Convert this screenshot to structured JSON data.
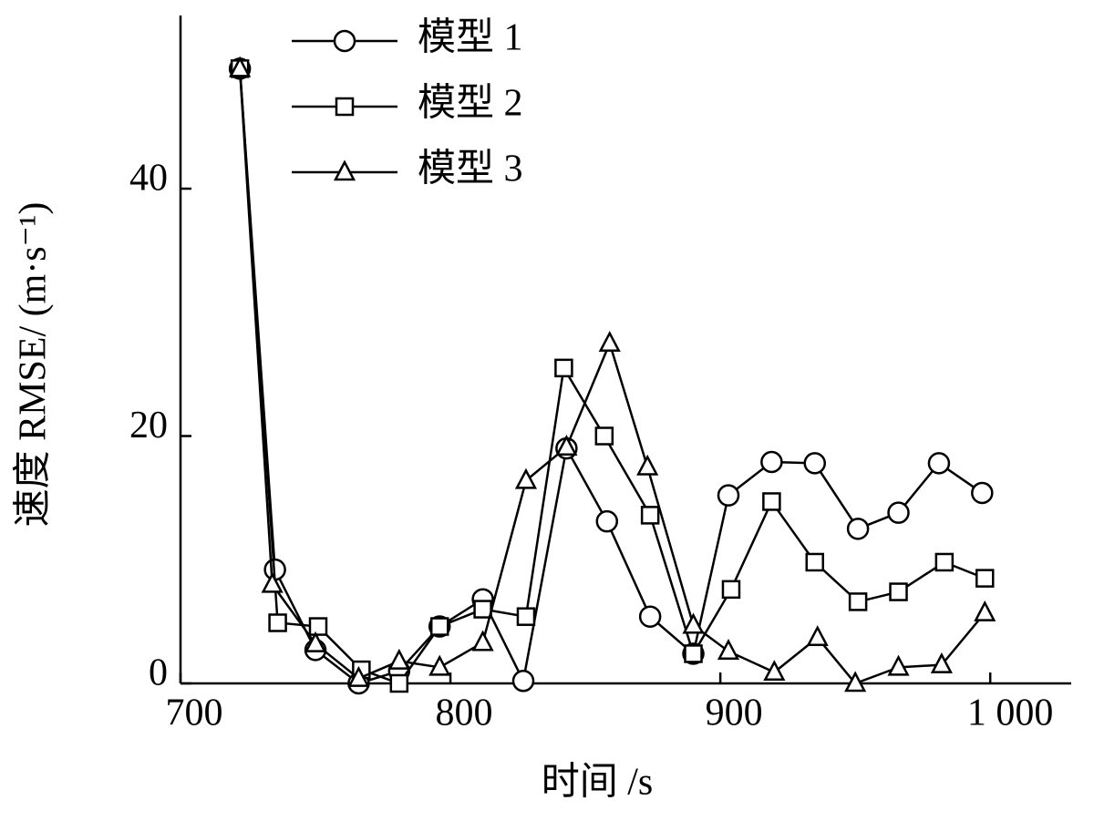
{
  "chart_data": {
    "type": "line",
    "xlabel": "时间 /s",
    "ylabel": "速度 RMSE/ (m·s⁻¹)",
    "xlim": [
      700,
      1030
    ],
    "ylim": [
      0,
      54
    ],
    "xticks": [
      700,
      800,
      900,
      {
        "value": 1000,
        "label": "1 000"
      }
    ],
    "yticks": [
      0,
      20,
      40
    ],
    "legend": "upper left",
    "series": [
      {
        "name": "模型 1",
        "color": "#000000",
        "marker": "circle",
        "x": [
          722,
          735,
          750,
          766,
          781,
          796,
          812,
          827,
          843,
          858,
          874,
          890,
          903,
          919,
          935,
          951,
          966,
          981,
          997
        ],
        "values": [
          49.7,
          9.2,
          2.7,
          0,
          1.0,
          4.6,
          6.8,
          0.2,
          19.0,
          13.1,
          5.4,
          2.4,
          15.2,
          17.9,
          17.8,
          12.5,
          13.8,
          17.8,
          15.4
        ]
      },
      {
        "name": "模型 2",
        "color": "#000000",
        "marker": "square",
        "x": [
          722,
          736,
          751,
          767,
          781,
          796,
          812,
          828,
          842,
          857,
          874,
          890,
          904,
          919,
          935,
          951,
          966,
          983,
          998
        ],
        "values": [
          49.7,
          4.9,
          4.6,
          1.1,
          0,
          4.6,
          6.0,
          5.4,
          25.5,
          20.0,
          13.6,
          2.4,
          7.6,
          14.7,
          9.8,
          6.6,
          7.4,
          9.8,
          8.5
        ]
      },
      {
        "name": "模型 3",
        "color": "#000000",
        "marker": "triangle",
        "x": [
          722,
          734,
          750,
          766,
          781,
          796,
          812,
          828,
          843,
          859,
          873,
          890,
          903,
          920,
          936,
          950,
          966,
          982,
          998
        ],
        "values": [
          49.7,
          8.0,
          3.2,
          0.4,
          1.8,
          1.3,
          3.3,
          16.4,
          19.1,
          27.5,
          17.5,
          4.7,
          2.6,
          0.9,
          3.7,
          0,
          1.3,
          1.5,
          5.7
        ]
      }
    ]
  }
}
